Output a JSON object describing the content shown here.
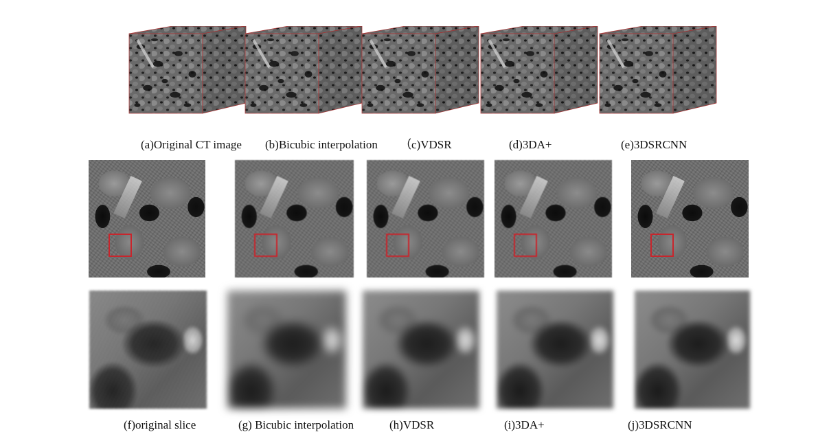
{
  "row1_captions": {
    "a": "(a)Original CT image",
    "b": "(b)Bicubic interpolation",
    "c": "（c)VDSR",
    "d": "(d)3DA+",
    "e": "(e)3DSRCNN"
  },
  "row3_captions": {
    "f": "(f)original slice",
    "g": "(g) Bicubic interpolation",
    "h": "(h)VDSR",
    "i": "(i)3DA+",
    "j": "(j)3DSRCNN"
  },
  "colors": {
    "roi_box": "#c8252c",
    "cube_edge": "#b03a3a"
  }
}
